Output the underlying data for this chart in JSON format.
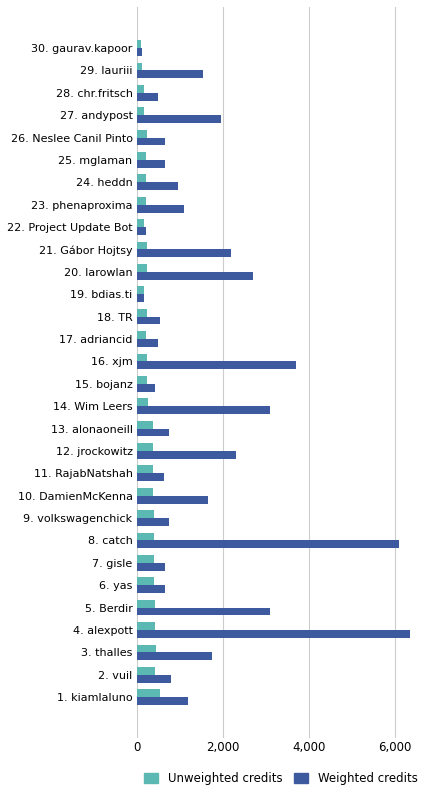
{
  "contributors": [
    "30. gaurav.kapoor",
    "29. lauriii",
    "28. chr.fritsch",
    "27. andypost",
    "26. Neslee Canil Pinto",
    "25. mglaman",
    "24. heddn",
    "23. phenaproxima",
    "22. Project Update Bot",
    "21. Gábor Hojtsy",
    "20. larowlan",
    "19. bdias.ti",
    "18. TR",
    "17. adriancid",
    "16. xjm",
    "15. bojanz",
    "14. Wim Leers",
    "13. alonaoneill",
    "12. jrockowitz",
    "11. RajabNatshah",
    "10. DamienMcKenna",
    "9. volkswagenchick",
    "8. catch",
    "7. gisle",
    "6. yas",
    "5. Berdir",
    "4. alexpott",
    "3. thalles",
    "2. vuil",
    "1. kiamlaluno"
  ],
  "unweighted": [
    100,
    120,
    180,
    170,
    230,
    220,
    210,
    210,
    160,
    230,
    230,
    160,
    230,
    210,
    230,
    230,
    270,
    380,
    380,
    380,
    380,
    410,
    410,
    400,
    400,
    430,
    430,
    450,
    430,
    530
  ],
  "weighted": [
    130,
    1550,
    500,
    1950,
    650,
    650,
    950,
    1100,
    210,
    2200,
    2700,
    180,
    550,
    500,
    3700,
    430,
    3100,
    750,
    2300,
    630,
    1650,
    750,
    6100,
    650,
    650,
    3100,
    6350,
    1750,
    800,
    1200
  ],
  "unweighted_color": "#5cb8b2",
  "weighted_color": "#3d5a9e",
  "background_color": "#ffffff",
  "xlim": [
    0,
    6700
  ],
  "xticks": [
    0,
    2000,
    4000,
    6000
  ],
  "xticklabels": [
    "0",
    "2,000",
    "4,000",
    "6,000"
  ],
  "grid_color": "#cccccc",
  "legend_labels": [
    "Unweighted credits",
    "Weighted credits"
  ],
  "bar_height": 0.35,
  "figsize": [
    4.32,
    7.92
  ],
  "dpi": 100
}
